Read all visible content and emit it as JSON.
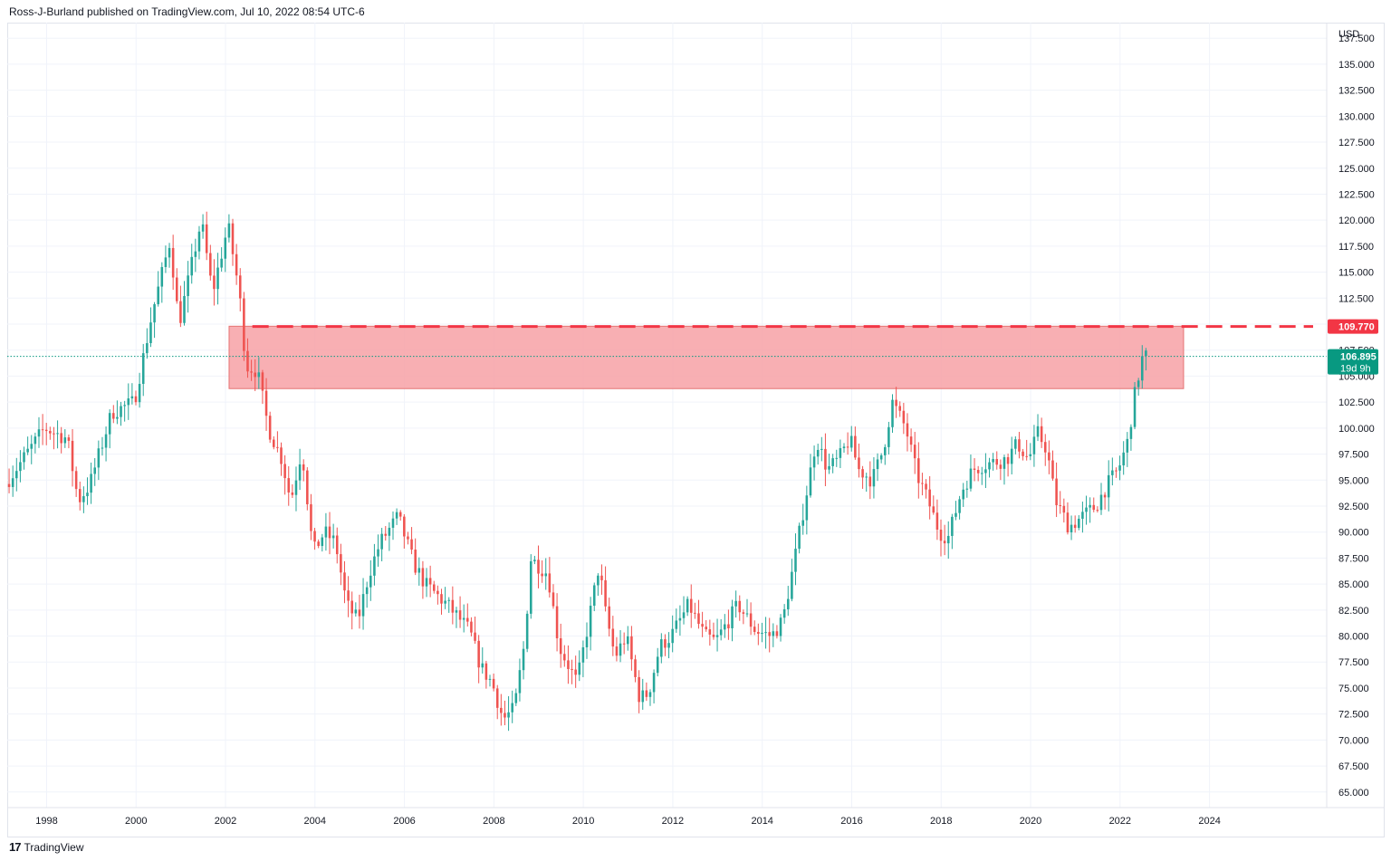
{
  "header": {
    "published": "Ross-J-Burland published on TradingView.com, Jul 10, 2022 08:54 UTC-6"
  },
  "footer": {
    "brand": "TradingView",
    "logo_icon": "tradingview-logo-icon"
  },
  "colors": {
    "up": "#26a69a",
    "down": "#ef5350",
    "zone": "#f7a1a6",
    "level": "#f23645",
    "last": "#089981"
  },
  "chart_data": {
    "type": "candlestick",
    "currency": "USD",
    "y_ticks": [
      "65.000",
      "67.500",
      "70.000",
      "72.500",
      "75.000",
      "77.500",
      "80.000",
      "82.500",
      "85.000",
      "87.500",
      "90.000",
      "92.500",
      "95.000",
      "97.500",
      "100.000",
      "102.500",
      "105.000",
      "107.500",
      "110.000",
      "112.500",
      "115.000",
      "117.500",
      "120.000",
      "122.500",
      "125.000",
      "127.500",
      "130.000",
      "132.500",
      "135.000",
      "137.500"
    ],
    "x_ticks": [
      "1998",
      "2000",
      "2002",
      "2004",
      "2006",
      "2008",
      "2010",
      "2012",
      "2014",
      "2016",
      "2018",
      "2020",
      "2022",
      "2024"
    ],
    "ylim": [
      63.5,
      139
    ],
    "xlim": [
      1997.12,
      2026.62
    ],
    "resistance_level": {
      "value": 109.77,
      "label": "109.770"
    },
    "last_price": {
      "value": 106.895,
      "label": "106.895",
      "countdown": "19d 9h"
    },
    "zone": {
      "from": 2002.08,
      "to": 2023.42,
      "low": 103.8,
      "high": 109.8
    },
    "anchors": [
      [
        1997.1,
        94.5
      ],
      [
        1998.0,
        100.0
      ],
      [
        1998.5,
        99.0
      ],
      [
        1998.75,
        93.0
      ],
      [
        1999.0,
        94.5
      ],
      [
        1999.5,
        101.5
      ],
      [
        2000.0,
        102.5
      ],
      [
        2000.4,
        111.0
      ],
      [
        2000.8,
        118.0
      ],
      [
        2001.0,
        110.0
      ],
      [
        2001.5,
        120.0
      ],
      [
        2001.75,
        113.0
      ],
      [
        2002.1,
        119.5
      ],
      [
        2002.35,
        113.0
      ],
      [
        2002.5,
        106.0
      ],
      [
        2002.75,
        105.5
      ],
      [
        2003.0,
        100.0
      ],
      [
        2003.3,
        97.0
      ],
      [
        2003.5,
        93.0
      ],
      [
        2003.75,
        98.0
      ],
      [
        2004.0,
        88.0
      ],
      [
        2004.25,
        90.0
      ],
      [
        2004.5,
        89.0
      ],
      [
        2004.75,
        83.0
      ],
      [
        2005.0,
        81.5
      ],
      [
        2005.25,
        86.0
      ],
      [
        2005.5,
        89.0
      ],
      [
        2005.9,
        91.5
      ],
      [
        2006.25,
        87.0
      ],
      [
        2006.5,
        85.0
      ],
      [
        2007.0,
        83.0
      ],
      [
        2007.5,
        80.5
      ],
      [
        2007.75,
        77.0
      ],
      [
        2008.0,
        75.5
      ],
      [
        2008.25,
        72.0
      ],
      [
        2008.5,
        73.0
      ],
      [
        2008.75,
        80.0
      ],
      [
        2008.85,
        87.5
      ],
      [
        2009.25,
        86.0
      ],
      [
        2009.5,
        79.0
      ],
      [
        2009.9,
        75.5
      ],
      [
        2010.1,
        80.0
      ],
      [
        2010.4,
        87.0
      ],
      [
        2010.5,
        83.0
      ],
      [
        2010.75,
        78.0
      ],
      [
        2011.0,
        80.0
      ],
      [
        2011.3,
        74.0
      ],
      [
        2011.5,
        74.5
      ],
      [
        2011.75,
        79.0
      ],
      [
        2012.0,
        80.0
      ],
      [
        2012.4,
        83.0
      ],
      [
        2012.75,
        80.0
      ],
      [
        2013.0,
        79.5
      ],
      [
        2013.5,
        83.0
      ],
      [
        2013.9,
        80.5
      ],
      [
        2014.25,
        80.0
      ],
      [
        2014.5,
        81.5
      ],
      [
        2014.75,
        87.0
      ],
      [
        2015.0,
        93.0
      ],
      [
        2015.25,
        99.0
      ],
      [
        2015.5,
        96.0
      ],
      [
        2015.75,
        97.0
      ],
      [
        2016.0,
        99.0
      ],
      [
        2016.2,
        96.0
      ],
      [
        2016.5,
        95.0
      ],
      [
        2016.75,
        98.0
      ],
      [
        2016.95,
        102.5
      ],
      [
        2017.25,
        100.0
      ],
      [
        2017.5,
        95.5
      ],
      [
        2017.75,
        93.0
      ],
      [
        2018.0,
        90.0
      ],
      [
        2018.2,
        89.5
      ],
      [
        2018.5,
        94.0
      ],
      [
        2018.75,
        96.0
      ],
      [
        2019.0,
        96.5
      ],
      [
        2019.5,
        97.0
      ],
      [
        2019.75,
        98.5
      ],
      [
        2020.0,
        97.0
      ],
      [
        2020.2,
        99.5
      ],
      [
        2020.4,
        98.0
      ],
      [
        2020.6,
        93.0
      ],
      [
        2020.9,
        90.5
      ],
      [
        2021.2,
        91.5
      ],
      [
        2021.5,
        92.5
      ],
      [
        2021.75,
        94.5
      ],
      [
        2022.0,
        96.0
      ],
      [
        2022.2,
        98.5
      ],
      [
        2022.4,
        104.0
      ],
      [
        2022.55,
        106.9
      ]
    ]
  }
}
